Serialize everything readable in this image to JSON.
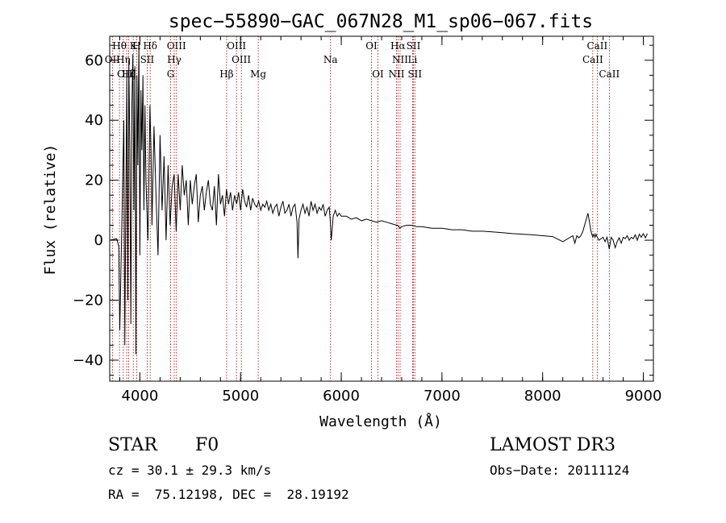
{
  "chart_data": {
    "type": "line",
    "title": "spec−55890−GAC_067N28_M1_sp06−067.fits",
    "xlabel": "Wavelength (Å)",
    "ylabel": "Flux (relative)",
    "xlim": [
      3700,
      9100
    ],
    "ylim": [
      -47,
      68
    ],
    "x_ticks": [
      {
        "value": 4000,
        "label": "4000"
      },
      {
        "value": 5000,
        "label": "5000"
      },
      {
        "value": 6000,
        "label": "6000"
      },
      {
        "value": 7000,
        "label": "7000"
      },
      {
        "value": 8000,
        "label": "8000"
      },
      {
        "value": 9000,
        "label": "9000"
      }
    ],
    "y_ticks": [
      {
        "value": -40,
        "label": "−40"
      },
      {
        "value": -20,
        "label": "−20"
      },
      {
        "value": 0,
        "label": "0"
      },
      {
        "value": 20,
        "label": "20"
      },
      {
        "value": 40,
        "label": "40"
      },
      {
        "value": 60,
        "label": "60"
      }
    ],
    "series": [
      {
        "name": "flux",
        "x": [
          3700,
          3770,
          3790,
          3800,
          3820,
          3840,
          3850,
          3870,
          3880,
          3890,
          3900,
          3910,
          3920,
          3930,
          3940,
          3950,
          3960,
          3970,
          3980,
          3990,
          4000,
          4010,
          4020,
          4030,
          4040,
          4050,
          4060,
          4080,
          4100,
          4110,
          4120,
          4140,
          4160,
          4180,
          4200,
          4220,
          4240,
          4260,
          4280,
          4300,
          4320,
          4340,
          4360,
          4380,
          4400,
          4420,
          4440,
          4460,
          4480,
          4500,
          4520,
          4540,
          4560,
          4580,
          4600,
          4620,
          4640,
          4660,
          4680,
          4700,
          4720,
          4740,
          4760,
          4780,
          4800,
          4820,
          4840,
          4860,
          4880,
          4900,
          4920,
          4940,
          4960,
          4980,
          5000,
          5020,
          5040,
          5060,
          5080,
          5100,
          5120,
          5140,
          5160,
          5180,
          5200,
          5220,
          5240,
          5260,
          5280,
          5300,
          5320,
          5340,
          5360,
          5380,
          5400,
          5420,
          5440,
          5460,
          5480,
          5500,
          5520,
          5540,
          5560,
          5570,
          5580,
          5600,
          5620,
          5640,
          5660,
          5680,
          5700,
          5720,
          5740,
          5760,
          5780,
          5800,
          5820,
          5840,
          5860,
          5880,
          5890,
          5900,
          5920,
          5940,
          5960,
          5980,
          6000,
          6050,
          6100,
          6150,
          6200,
          6250,
          6300,
          6350,
          6400,
          6450,
          6500,
          6550,
          6563,
          6580,
          6600,
          6650,
          6700,
          6750,
          6800,
          6900,
          7000,
          7100,
          7200,
          7300,
          7400,
          7500,
          7600,
          7700,
          7800,
          7900,
          8000,
          8100,
          8200,
          8300,
          8320,
          8340,
          8360,
          8380,
          8400,
          8450,
          8480,
          8498,
          8510,
          8520,
          8530,
          8542,
          8560,
          8600,
          8620,
          8640,
          8662,
          8680,
          8700,
          8720,
          8740,
          8760,
          8780,
          8800,
          8820,
          8840,
          8860,
          8880,
          8900,
          8920,
          8940,
          8960,
          8980,
          9000,
          9020,
          9040
        ],
        "values": [
          0,
          0.5,
          -2,
          -30,
          5,
          40,
          -35,
          55,
          -20,
          60,
          30,
          -28,
          45,
          62,
          10,
          58,
          -38,
          55,
          25,
          66,
          -5,
          50,
          30,
          55,
          10,
          45,
          20,
          0,
          45,
          30,
          5,
          38,
          15,
          -5,
          35,
          10,
          28,
          0,
          25,
          5,
          18,
          22,
          3,
          22,
          10,
          25,
          15,
          20,
          5,
          20,
          12,
          18,
          22,
          6,
          15,
          18,
          10,
          16,
          20,
          12,
          10,
          18,
          5,
          22,
          12,
          15,
          8,
          17,
          12,
          16,
          10,
          15,
          12,
          16,
          10,
          17,
          13,
          11,
          15,
          10,
          14,
          12,
          11,
          13,
          10,
          12,
          11,
          13,
          10,
          12,
          9,
          11,
          12,
          8,
          11,
          13,
          9,
          10,
          12,
          8,
          11,
          12,
          6,
          -6,
          7,
          10,
          12,
          9,
          11,
          8,
          13,
          10,
          12,
          9,
          11,
          10,
          12,
          8,
          10,
          11,
          7,
          0,
          8,
          10,
          8,
          9,
          8,
          8,
          7,
          7.5,
          6.5,
          7,
          6.5,
          6,
          6.5,
          6,
          5.5,
          5,
          5,
          4,
          4.5,
          5,
          5,
          4.5,
          4.5,
          4,
          4,
          3.5,
          3.5,
          3,
          3,
          2.8,
          2.5,
          2.2,
          2,
          1.8,
          1.5,
          1.2,
          -0.5,
          1.5,
          -1,
          1.5,
          0.8,
          1.5,
          3,
          9,
          3,
          1,
          2,
          1,
          2,
          1,
          0,
          1,
          -0.5,
          1,
          -3,
          1,
          0,
          -2.5,
          -0.5,
          0.8,
          -1,
          1,
          0.5,
          1.5,
          0,
          1,
          0.5,
          1.8,
          0,
          2,
          1,
          2.2,
          0.8,
          2.2
        ]
      }
    ],
    "lines": [
      {
        "label": "Hθ",
        "wave": 3797,
        "row": 0
      },
      {
        "label": "K",
        "wave": 3934,
        "row": 0
      },
      {
        "label": "H",
        "wave": 3968,
        "row": 0
      },
      {
        "label": "Hδ",
        "wave": 4102,
        "row": 0
      },
      {
        "label": "OIII",
        "wave": 4363,
        "row": 0
      },
      {
        "label": "OIII",
        "wave": 4959,
        "row": 0
      },
      {
        "label": "OI",
        "wave": 6300,
        "row": 0
      },
      {
        "label": "Hα",
        "wave": 6563,
        "row": 0
      },
      {
        "label": "SII",
        "wave": 6717,
        "row": 0
      },
      {
        "label": "CaII",
        "wave": 8542,
        "row": 0
      },
      {
        "label": "OII",
        "wave": 3727,
        "row": 1
      },
      {
        "label": "Hη",
        "wave": 3835,
        "row": 1
      },
      {
        "label": "SII",
        "wave": 4072,
        "row": 1
      },
      {
        "label": "Hγ",
        "wave": 4341,
        "row": 1
      },
      {
        "label": "OIII",
        "wave": 5007,
        "row": 1
      },
      {
        "label": "Na",
        "wave": 5893,
        "row": 1
      },
      {
        "label": "NII",
        "wave": 6584,
        "row": 1
      },
      {
        "label": "Li",
        "wave": 6708,
        "row": 1
      },
      {
        "label": "CaII",
        "wave": 8498,
        "row": 1
      },
      {
        "label": "OIII",
        "wave": 3869,
        "row": 2
      },
      {
        "label": "Hζ",
        "wave": 3889,
        "row": 2
      },
      {
        "label": "G",
        "wave": 4305,
        "row": 2
      },
      {
        "label": "Hβ",
        "wave": 4861,
        "row": 2
      },
      {
        "label": "Mg",
        "wave": 5175,
        "row": 2
      },
      {
        "label": "OI",
        "wave": 6364,
        "row": 2
      },
      {
        "label": "NII",
        "wave": 6548,
        "row": 2
      },
      {
        "label": "SII",
        "wave": 6731,
        "row": 2
      },
      {
        "label": "CaII",
        "wave": 8662,
        "row": 2
      }
    ]
  },
  "info": {
    "object_class": "STAR",
    "subclass": "F0",
    "survey": "LAMOST DR3",
    "cz": "cz = 30.1 ± 29.3 km/s",
    "obs_date": "Obs−Date: 20111124",
    "radec": "RA =  75.12198, DEC =  28.19192"
  },
  "colors": {
    "line_marker": "#990000",
    "spectrum": "#000000",
    "axes": "#000000"
  }
}
